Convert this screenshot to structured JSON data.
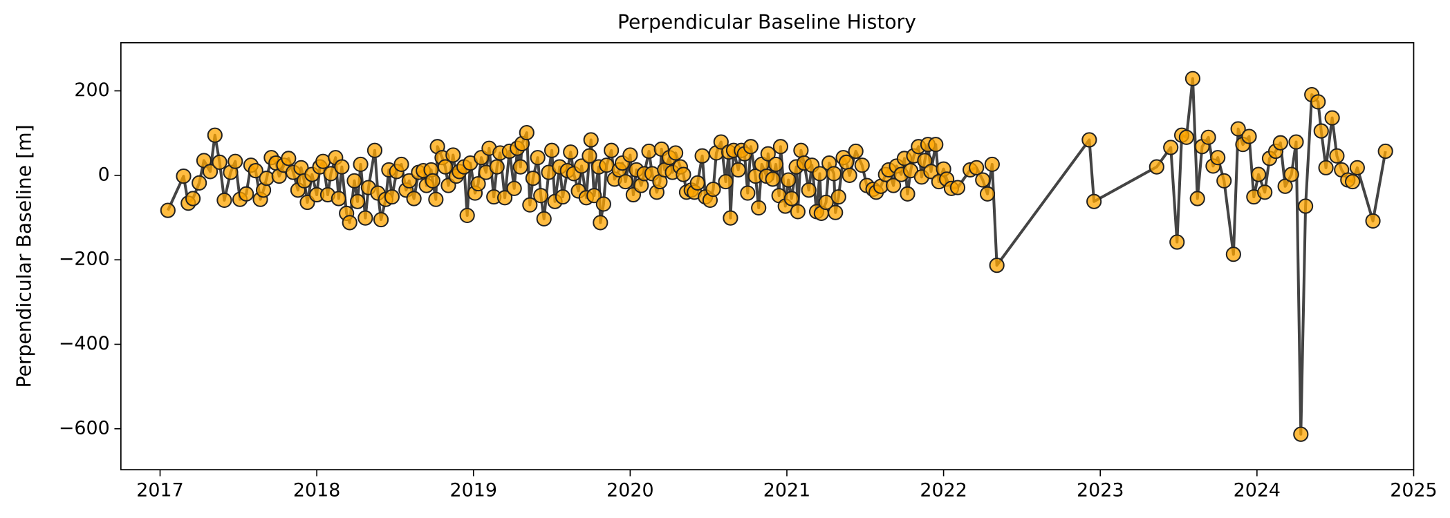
{
  "chart_data": {
    "type": "line",
    "title": "Perpendicular Baseline History",
    "y_label": "Perpendicular Baseline [m]",
    "color": "#ffa500",
    "edge_color": "#222222",
    "line_color": "#444444",
    "xlim": [
      2016.75,
      2025.0
    ],
    "xticks": [
      2017,
      2018,
      2019,
      2020,
      2021,
      2022,
      2023,
      2024,
      2025
    ],
    "ylim": [
      -697,
      314
    ],
    "yticks": [
      {
        "value": 200,
        "label": "200"
      },
      {
        "value": 0,
        "label": "0"
      },
      {
        "value": -200,
        "label": "−200"
      },
      {
        "value": -400,
        "label": "−400"
      },
      {
        "value": -600,
        "label": "−600"
      }
    ],
    "x": [
      2017.05,
      2017.15,
      2017.18,
      2017.21,
      2017.25,
      2017.28,
      2017.32,
      2017.35,
      2017.38,
      2017.41,
      2017.45,
      2017.48,
      2017.51,
      2017.55,
      2017.58,
      2017.61,
      2017.64,
      2017.66,
      2017.68,
      2017.71,
      2017.74,
      2017.76,
      2017.79,
      2017.82,
      2017.85,
      2017.88,
      2017.9,
      2017.92,
      2017.94,
      2017.97,
      2018.0,
      2018.02,
      2018.04,
      2018.07,
      2018.09,
      2018.12,
      2018.14,
      2018.16,
      2018.19,
      2018.21,
      2018.24,
      2018.26,
      2018.28,
      2018.31,
      2018.33,
      2018.37,
      2018.39,
      2018.41,
      2018.44,
      2018.46,
      2018.48,
      2018.51,
      2018.54,
      2018.57,
      2018.59,
      2018.62,
      2018.65,
      2018.68,
      2018.7,
      2018.73,
      2018.74,
      2018.76,
      2018.77,
      2018.8,
      2018.82,
      2018.84,
      2018.87,
      2018.89,
      2018.91,
      2018.94,
      2018.96,
      2018.98,
      2019.01,
      2019.03,
      2019.05,
      2019.08,
      2019.1,
      2019.13,
      2019.15,
      2019.17,
      2019.2,
      2019.23,
      2019.26,
      2019.28,
      2019.3,
      2019.31,
      2019.34,
      2019.36,
      2019.38,
      2019.41,
      2019.43,
      2019.45,
      2019.48,
      2019.5,
      2019.52,
      2019.55,
      2019.57,
      2019.6,
      2019.62,
      2019.64,
      2019.67,
      2019.69,
      2019.72,
      2019.74,
      2019.75,
      2019.77,
      2019.8,
      2019.81,
      2019.83,
      2019.85,
      2019.88,
      2019.9,
      2019.93,
      2019.95,
      2019.97,
      2020.0,
      2020.02,
      2020.04,
      2020.07,
      2020.09,
      2020.12,
      2020.14,
      2020.17,
      2020.19,
      2020.2,
      2020.22,
      2020.25,
      2020.27,
      2020.29,
      2020.32,
      2020.34,
      2020.36,
      2020.39,
      2020.41,
      2020.43,
      2020.46,
      2020.48,
      2020.51,
      2020.53,
      2020.55,
      2020.58,
      2020.61,
      2020.63,
      2020.64,
      2020.66,
      2020.69,
      2020.71,
      2020.73,
      2020.75,
      2020.77,
      2020.8,
      2020.82,
      2020.84,
      2020.87,
      2020.88,
      2020.91,
      2020.93,
      2020.95,
      2020.96,
      2020.99,
      2021.01,
      2021.03,
      2021.06,
      2021.07,
      2021.09,
      2021.11,
      2021.14,
      2021.16,
      2021.19,
      2021.21,
      2021.22,
      2021.25,
      2021.27,
      2021.3,
      2021.31,
      2021.33,
      2021.36,
      2021.38,
      2021.4,
      2021.44,
      2021.48,
      2021.51,
      2021.55,
      2021.57,
      2021.6,
      2021.63,
      2021.65,
      2021.68,
      2021.7,
      2021.73,
      2021.75,
      2021.77,
      2021.79,
      2021.81,
      2021.84,
      2021.86,
      2021.88,
      2021.9,
      2021.92,
      2021.95,
      2021.97,
      2022.0,
      2022.02,
      2022.05,
      2022.09,
      2022.17,
      2022.21,
      2022.25,
      2022.28,
      2022.31,
      2022.34,
      2022.93,
      2022.96,
      2023.36,
      2023.45,
      2023.49,
      2023.52,
      2023.55,
      2023.59,
      2023.62,
      2023.65,
      2023.69,
      2023.72,
      2023.75,
      2023.79,
      2023.85,
      2023.88,
      2023.91,
      2023.95,
      2023.98,
      2024.01,
      2024.05,
      2024.08,
      2024.12,
      2024.15,
      2024.18,
      2024.22,
      2024.25,
      2024.28,
      2024.31,
      2024.35,
      2024.39,
      2024.41,
      2024.44,
      2024.48,
      2024.51,
      2024.54,
      2024.58,
      2024.61,
      2024.64,
      2024.74,
      2024.82
    ],
    "values": [
      -83,
      -2,
      -66,
      -55,
      -18,
      35,
      9,
      95,
      31,
      -59,
      7,
      33,
      -57,
      -44,
      24,
      11,
      -57,
      -35,
      -7,
      42,
      29,
      -2,
      24,
      40,
      7,
      -35,
      18,
      -13,
      -64,
      2,
      -46,
      20,
      33,
      -46,
      4,
      42,
      -55,
      20,
      -90,
      -112,
      -13,
      -62,
      26,
      -101,
      -29,
      59,
      -42,
      -105,
      -57,
      13,
      -51,
      9,
      26,
      -35,
      -13,
      -55,
      7,
      11,
      -24,
      13,
      -13,
      -57,
      68,
      42,
      20,
      -24,
      48,
      -2,
      9,
      20,
      -95,
      29,
      -42,
      -20,
      42,
      7,
      64,
      -51,
      20,
      53,
      -53,
      57,
      -31,
      64,
      20,
      75,
      101,
      -70,
      -7,
      42,
      -48,
      -103,
      7,
      59,
      -62,
      20,
      -51,
      11,
      55,
      4,
      -37,
      22,
      -53,
      46,
      84,
      -48,
      20,
      -112,
      -68,
      24,
      59,
      -9,
      13,
      29,
      -15,
      48,
      -46,
      13,
      -24,
      4,
      57,
      4,
      -40,
      -15,
      62,
      13,
      42,
      7,
      53,
      20,
      2,
      -40,
      -35,
      -40,
      -18,
      46,
      -51,
      -59,
      -33,
      53,
      79,
      -15,
      55,
      -101,
      59,
      13,
      59,
      51,
      -42,
      68,
      -2,
      -77,
      26,
      -2,
      51,
      -9,
      26,
      -48,
      68,
      -73,
      -11,
      -55,
      20,
      -86,
      59,
      29,
      -35,
      24,
      -86,
      4,
      -90,
      -64,
      29,
      4,
      -88,
      -51,
      42,
      31,
      0,
      57,
      24,
      -24,
      -33,
      -40,
      -26,
      2,
      13,
      -24,
      22,
      2,
      40,
      -44,
      11,
      46,
      68,
      -4,
      35,
      73,
      9,
      73,
      -15,
      15,
      -9,
      -31,
      -29,
      13,
      18,
      -11,
      -44,
      26,
      -213,
      84,
      -62,
      20,
      66,
      -158,
      95,
      90,
      229,
      -55,
      68,
      90,
      22,
      42,
      -13,
      -187,
      110,
      73,
      92,
      -51,
      2,
      -40,
      40,
      57,
      77,
      -26,
      2,
      79,
      -613,
      -73,
      191,
      174,
      105,
      18,
      136,
      46,
      13,
      -11,
      -15,
      18,
      -108,
      57
    ]
  }
}
